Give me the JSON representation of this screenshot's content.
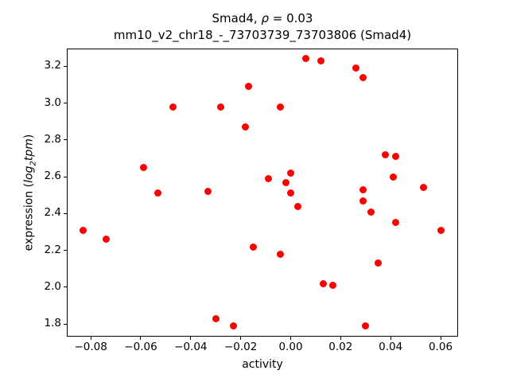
{
  "title": {
    "prefix": "Smad4, ",
    "rho": "ρ",
    "suffix": " = 0.03"
  },
  "subtitle": "mm10_v2_chr18_-_73703739_73703806 (Smad4)",
  "ylabel_parts": {
    "prefix": "expression (",
    "log": "log",
    "sub": "2",
    "var": "tpm",
    "suffix": ")"
  },
  "chart_data": {
    "type": "scatter",
    "title": "Smad4, ρ = 0.03",
    "subtitle": "mm10_v2_chr18_-_73703739_73703806 (Smad4)",
    "xlabel": "activity",
    "ylabel": "expression (log2tpm)",
    "marker_color": "#ff0000",
    "grid": false,
    "legend": null,
    "xlim": [
      -0.0896,
      0.067
    ],
    "ylim": [
      1.732,
      3.296
    ],
    "xticks": [
      -0.08,
      -0.06,
      -0.04,
      -0.02,
      0.0,
      0.02,
      0.04,
      0.06
    ],
    "xtick_labels": [
      "−0.08",
      "−0.06",
      "−0.04",
      "−0.02",
      "0.00",
      "0.02",
      "0.04",
      "0.06"
    ],
    "yticks": [
      1.8,
      2.0,
      2.2,
      2.4,
      2.6,
      2.8,
      3.0,
      3.2
    ],
    "ytick_labels": [
      "1.8",
      "2.0",
      "2.2",
      "2.4",
      "2.6",
      "2.8",
      "3.0",
      "3.2"
    ],
    "points": [
      [
        -0.083,
        2.31
      ],
      [
        -0.074,
        2.26
      ],
      [
        -0.059,
        2.65
      ],
      [
        -0.053,
        2.51
      ],
      [
        -0.047,
        2.98
      ],
      [
        -0.033,
        2.52
      ],
      [
        -0.03,
        1.83
      ],
      [
        -0.028,
        2.98
      ],
      [
        -0.023,
        1.79
      ],
      [
        -0.018,
        2.87
      ],
      [
        -0.017,
        3.09
      ],
      [
        -0.015,
        2.22
      ],
      [
        -0.009,
        2.59
      ],
      [
        -0.004,
        2.98
      ],
      [
        -0.004,
        2.18
      ],
      [
        -0.002,
        2.57
      ],
      [
        0.0,
        2.62
      ],
      [
        0.0,
        2.51
      ],
      [
        0.003,
        2.44
      ],
      [
        0.006,
        3.24
      ],
      [
        0.012,
        3.23
      ],
      [
        0.013,
        2.02
      ],
      [
        0.017,
        2.01
      ],
      [
        0.026,
        3.19
      ],
      [
        0.029,
        3.14
      ],
      [
        0.029,
        2.53
      ],
      [
        0.029,
        2.47
      ],
      [
        0.03,
        1.79
      ],
      [
        0.032,
        2.41
      ],
      [
        0.035,
        2.13
      ],
      [
        0.038,
        2.72
      ],
      [
        0.041,
        2.6
      ],
      [
        0.042,
        2.71
      ],
      [
        0.042,
        2.35
      ],
      [
        0.053,
        2.54
      ],
      [
        0.06,
        2.31
      ]
    ]
  }
}
